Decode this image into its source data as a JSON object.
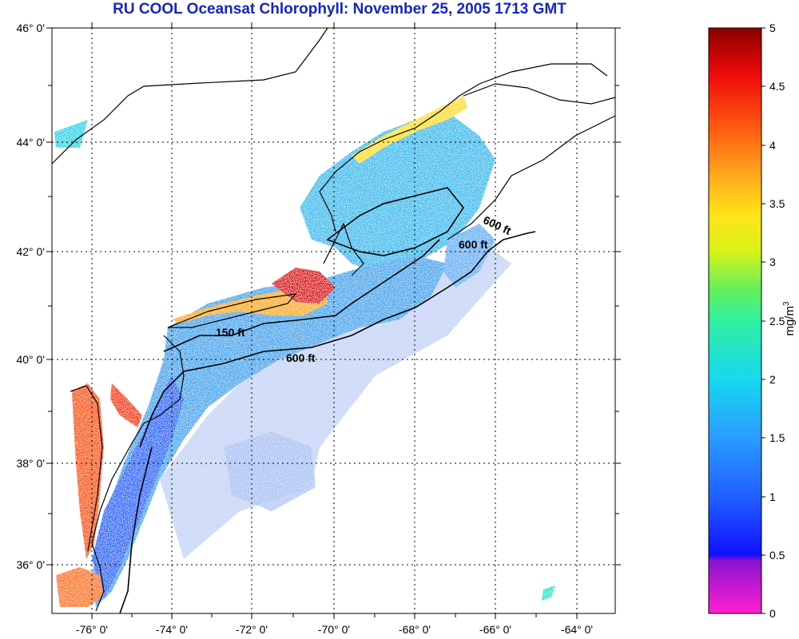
{
  "title": "RU COOL  Oceansat Chlorophyll:  November 25, 2005 1713 GMT",
  "latitude_labels": [
    "46° 0'",
    "44° 0'",
    "42° 0'",
    "40° 0'",
    "38° 0'",
    "36° 0'"
  ],
  "longitude_labels": [
    "-76° 0'",
    "-74° 0'",
    "-72° 0'",
    "-70° 0'",
    "-68° 0'",
    "-66° 0'",
    "-64° 0'"
  ],
  "colorbar": {
    "labels": [
      "5",
      "4.5",
      "4",
      "3.5",
      "3",
      "2.5",
      "2",
      "1.5",
      "1",
      "0.5",
      "0"
    ],
    "unit_base": "mg/m",
    "unit_exp": "3",
    "colors": [
      "#ff1fd0",
      "#6a00c8",
      "#1010ff",
      "#2a7cff",
      "#17c8ef",
      "#28e89a",
      "#7cf24c",
      "#f2f218",
      "#ff9d1c",
      "#ff3010",
      "#8a0000"
    ]
  },
  "contour_labels": [
    "150 ft",
    "600 ft",
    "600 ft",
    "600 ft"
  ]
}
